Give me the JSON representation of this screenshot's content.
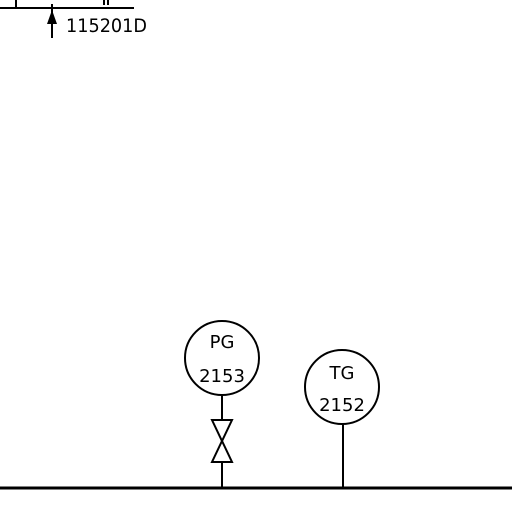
{
  "reference": {
    "text": "115201D"
  },
  "instruments": [
    {
      "id": "pressure-gauge",
      "tag": "PG",
      "number": "2153",
      "has_valve": true
    },
    {
      "id": "temperature-gauge",
      "tag": "TG",
      "number": "2152",
      "has_valve": false
    }
  ],
  "colors": {
    "line": "#000000",
    "background": "#ffffff"
  }
}
